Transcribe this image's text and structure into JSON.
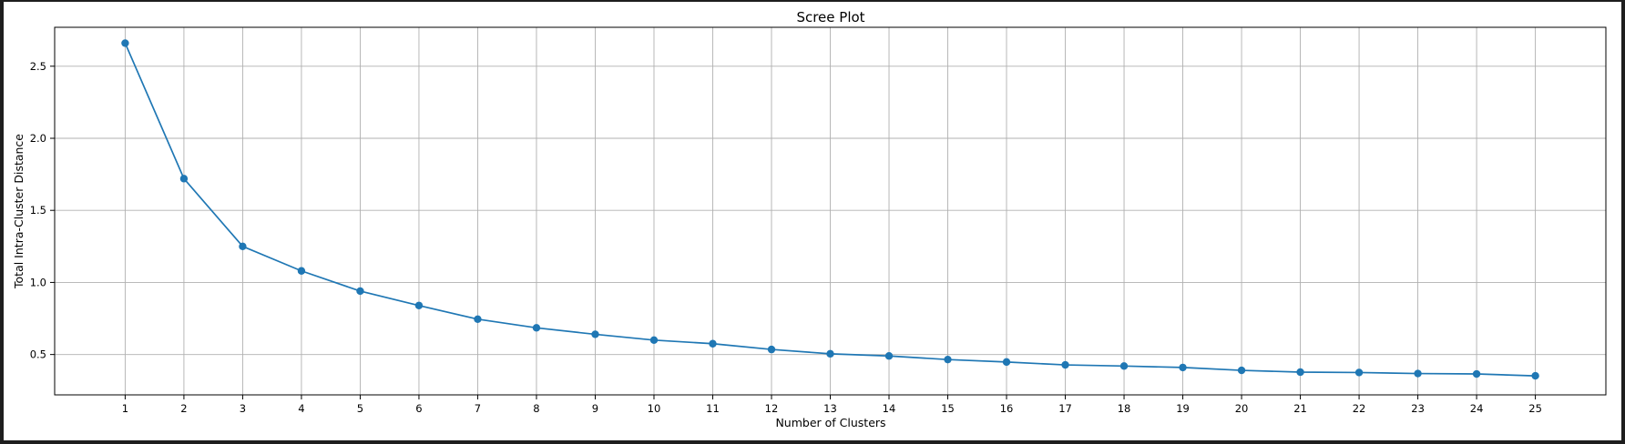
{
  "chart_data": {
    "type": "line",
    "title": "Scree Plot",
    "xlabel": "Number of Clusters",
    "ylabel": "Total Intra-Cluster Distance",
    "x": [
      1,
      2,
      3,
      4,
      5,
      6,
      7,
      8,
      9,
      10,
      11,
      12,
      13,
      14,
      15,
      16,
      17,
      18,
      19,
      20,
      21,
      22,
      23,
      24,
      25
    ],
    "series": [
      {
        "values": [
          2.66,
          1.72,
          1.25,
          1.08,
          0.94,
          0.84,
          0.745,
          0.685,
          0.64,
          0.6,
          0.575,
          0.535,
          0.505,
          0.49,
          0.465,
          0.448,
          0.428,
          0.42,
          0.41,
          0.39,
          0.378,
          0.375,
          0.368,
          0.365,
          0.352
        ],
        "color": "#1f77b4",
        "marker": "circle"
      }
    ],
    "xlim": [
      -0.2,
      26.2
    ],
    "ylim": [
      0.22,
      2.77
    ],
    "xticks": [
      "1",
      "2",
      "3",
      "4",
      "5",
      "6",
      "7",
      "8",
      "9",
      "10",
      "11",
      "12",
      "13",
      "14",
      "15",
      "16",
      "17",
      "18",
      "19",
      "20",
      "21",
      "22",
      "23",
      "24",
      "25"
    ],
    "yticks": [
      "0.5",
      "1.0",
      "1.5",
      "2.0",
      "2.5"
    ],
    "ytick_values": [
      0.5,
      1.0,
      1.5,
      2.0,
      2.5
    ],
    "grid": true,
    "legend": "none"
  }
}
